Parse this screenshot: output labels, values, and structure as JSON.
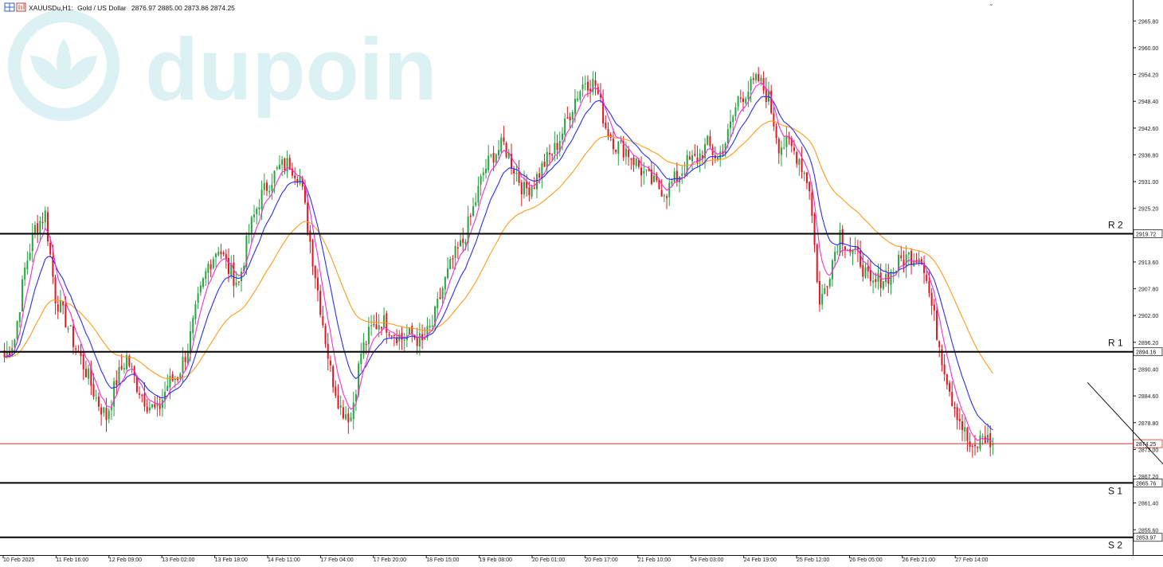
{
  "header": {
    "symbol": "XAUUSDu,H1:",
    "instrument": "Gold / US Dollar",
    "ohlc": "2876.97 2885.00 2873.86 2874.25"
  },
  "watermark": {
    "text": "dupoin"
  },
  "chart_data": {
    "type": "candlestick",
    "symbol": "XAUUSDu",
    "timeframe": "H1",
    "ylim": [
      2851.0,
      2970.0
    ],
    "y_ticks": [
      "2965.80",
      "2960.00",
      "2954.20",
      "2948.40",
      "2942.60",
      "2936.80",
      "2931.00",
      "2925.20",
      "2919.72",
      "2913.60",
      "2907.80",
      "2902.00",
      "2896.20",
      "2894.16",
      "2890.40",
      "2884.60",
      "2878.80",
      "2874.25",
      "2873.00",
      "2867.20",
      "2865.76",
      "2861.40",
      "2855.60",
      "2853.97"
    ],
    "x_ticks": [
      "10 Feb 2025",
      "11 Feb 16:00",
      "12 Feb 09:00",
      "13 Feb 02:00",
      "13 Feb 18:00",
      "14 Feb 11:00",
      "17 Feb 04:00",
      "17 Feb 20:00",
      "18 Feb 15:00",
      "19 Feb 08:00",
      "20 Feb 01:00",
      "20 Feb 17:00",
      "21 Feb 10:00",
      "24 Feb 03:00",
      "24 Feb 19:00",
      "25 Feb 12:00",
      "26 Feb 05:00",
      "26 Feb 21:00",
      "27 Feb 14:00"
    ],
    "levels": [
      {
        "label": "R 2",
        "price": "2919.72",
        "value": 2919.72,
        "color": "#000000"
      },
      {
        "label": "R 1",
        "price": "2894.16",
        "value": 2894.16,
        "color": "#000000"
      },
      {
        "label": "S 1",
        "price": "2865.76",
        "value": 2865.76,
        "color": "#000000"
      },
      {
        "label": "S 2",
        "price": "2853.97",
        "value": 2853.97,
        "color": "#000000"
      }
    ],
    "current_price": {
      "price": "2874.25",
      "value": 2874.25,
      "color": "#c0392b"
    },
    "series_colors": {
      "bull": "#26a641",
      "bear": "#e8141e",
      "fast_ma": "#ff2ad4",
      "mid_ma": "#2b2bff",
      "slow_ma": "#ff9a1a"
    },
    "price_path": [
      2893,
      2897,
      2912,
      2921,
      2924,
      2906,
      2901,
      2895,
      2890,
      2884,
      2880,
      2888,
      2893,
      2887,
      2883,
      2881,
      2887,
      2889,
      2895,
      2905,
      2913,
      2917,
      2912,
      2909,
      2920,
      2927,
      2931,
      2934,
      2935,
      2932,
      2918,
      2904,
      2890,
      2882,
      2880,
      2894,
      2899,
      2901,
      2899,
      2897,
      2898,
      2896,
      2900,
      2908,
      2914,
      2918,
      2925,
      2933,
      2937,
      2939,
      2934,
      2929,
      2931,
      2935,
      2938,
      2943,
      2949,
      2953,
      2952,
      2943,
      2939,
      2938,
      2935,
      2932,
      2930,
      2929,
      2932,
      2935,
      2936,
      2939,
      2936,
      2941,
      2949,
      2951,
      2953,
      2949,
      2939,
      2939,
      2936,
      2930,
      2904,
      2912,
      2920,
      2916,
      2914,
      2908,
      2910,
      2911,
      2914,
      2915,
      2915,
      2904,
      2893,
      2884,
      2878,
      2872,
      2876,
      2874
    ],
    "arrow": {
      "from": [
        2887.5,
        20.5
      ],
      "to": [
        2866.5,
        22.2
      ]
    }
  }
}
